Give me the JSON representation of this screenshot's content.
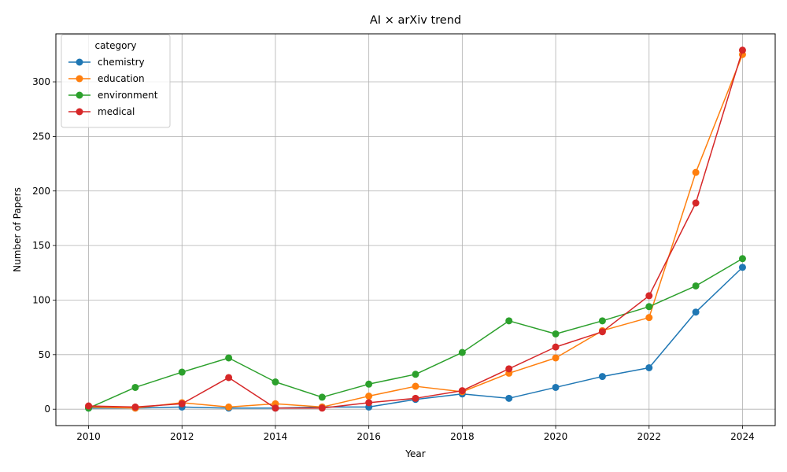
{
  "chart_data": {
    "type": "line",
    "title": "AI × arXiv trend",
    "xlabel": "Year",
    "ylabel": "Number of Papers",
    "xlim": [
      2009.3,
      2024.7
    ],
    "ylim": [
      -15,
      344
    ],
    "xticks": [
      2010,
      2012,
      2014,
      2016,
      2018,
      2020,
      2022,
      2024
    ],
    "yticks": [
      0,
      50,
      100,
      150,
      200,
      250,
      300
    ],
    "grid": true,
    "legend": {
      "title": "category",
      "placement": "top-left"
    },
    "x": [
      2010,
      2011,
      2012,
      2013,
      2014,
      2015,
      2016,
      2017,
      2018,
      2019,
      2020,
      2021,
      2022,
      2023,
      2024
    ],
    "series": [
      {
        "name": "chemistry",
        "color": "#1f77b4",
        "values": [
          1,
          1,
          2,
          1,
          1,
          2,
          2,
          9,
          14,
          10,
          20,
          30,
          38,
          89,
          130
        ]
      },
      {
        "name": "education",
        "color": "#ff7f0e",
        "values": [
          2,
          1,
          6,
          2,
          5,
          2,
          12,
          21,
          16,
          33,
          47,
          72,
          84,
          217,
          325
        ]
      },
      {
        "name": "environment",
        "color": "#2ca02c",
        "values": [
          1,
          20,
          34,
          47,
          25,
          11,
          23,
          32,
          52,
          81,
          69,
          81,
          94,
          113,
          138
        ]
      },
      {
        "name": "medical",
        "color": "#d62728",
        "values": [
          3,
          2,
          5,
          29,
          1,
          1,
          6,
          10,
          17,
          37,
          57,
          71,
          104,
          189,
          329
        ]
      }
    ]
  }
}
